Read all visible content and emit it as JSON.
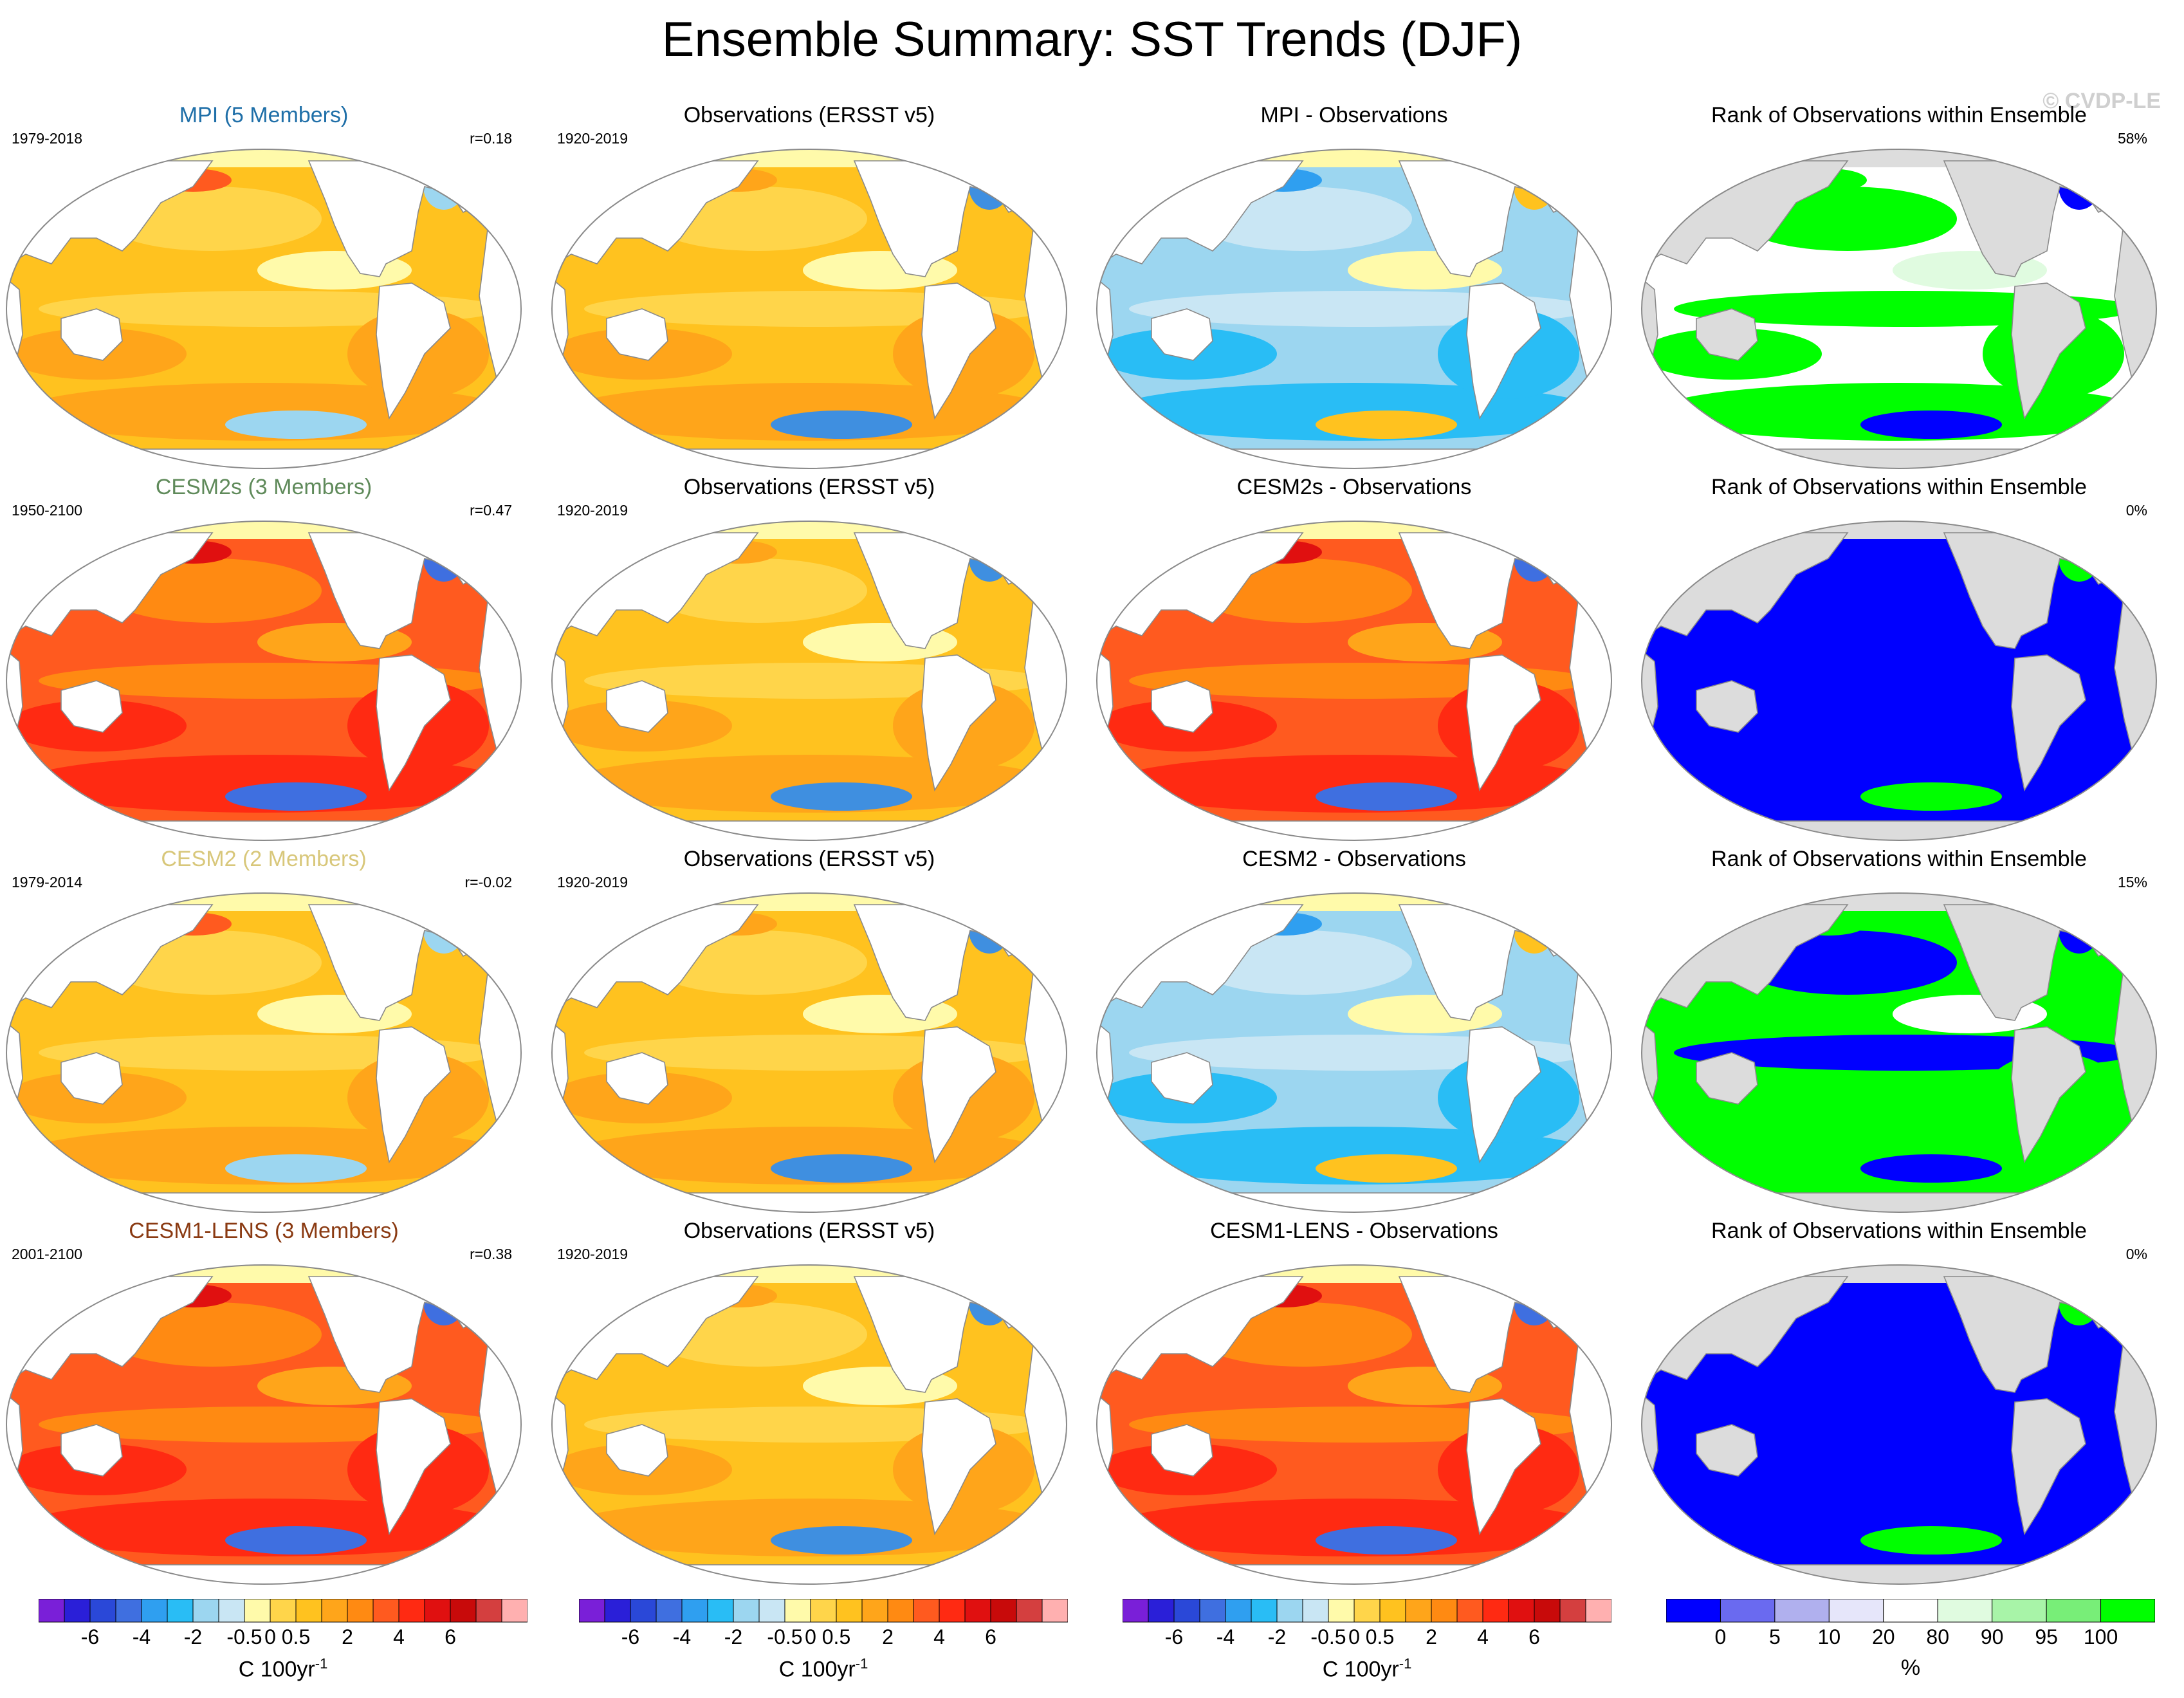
{
  "title": "Ensemble Summary: SST Trends (DJF)",
  "watermark": "© CVDP-LE",
  "rows": [
    {
      "model": {
        "title": "MPI (5 Members)",
        "title_color": "#1f6fa8",
        "years": "1979-2018",
        "corr": "r=0.18",
        "scheme": "warm"
      },
      "obs": {
        "title": "Observations (ERSST v5)",
        "years": "1920-2019",
        "scheme": "obs"
      },
      "diff": {
        "title": "MPI - Observations",
        "scheme": "cool"
      },
      "rank": {
        "title": "Rank of Observations within Ensemble",
        "pct": "58%",
        "scheme": "rank_mixed"
      }
    },
    {
      "model": {
        "title": "CESM2s (3 Members)",
        "title_color": "#5f8a5a",
        "years": "1950-2100",
        "corr": "r=0.47",
        "scheme": "hot"
      },
      "obs": {
        "title": "Observations (ERSST v5)",
        "years": "1920-2019",
        "scheme": "obs"
      },
      "diff": {
        "title": "CESM2s - Observations",
        "scheme": "hot"
      },
      "rank": {
        "title": "Rank of Observations within Ensemble",
        "pct": "0%",
        "scheme": "rank_blue"
      }
    },
    {
      "model": {
        "title": "CESM2 (2 Members)",
        "title_color": "#d8c77a",
        "years": "1979-2014",
        "corr": "r=-0.02",
        "scheme": "warm"
      },
      "obs": {
        "title": "Observations (ERSST v5)",
        "years": "1920-2019",
        "scheme": "obs"
      },
      "diff": {
        "title": "CESM2 - Observations",
        "scheme": "cool"
      },
      "rank": {
        "title": "Rank of Observations within Ensemble",
        "pct": "15%",
        "scheme": "rank_green"
      }
    },
    {
      "model": {
        "title": "CESM1-LENS (3 Members)",
        "title_color": "#8a3a12",
        "years": "2001-2100",
        "corr": "r=0.38",
        "scheme": "hot"
      },
      "obs": {
        "title": "Observations (ERSST v5)",
        "years": "1920-2019",
        "scheme": "obs"
      },
      "diff": {
        "title": "CESM1-LENS - Observations",
        "scheme": "hot"
      },
      "rank": {
        "title": "Rank of Observations within Ensemble",
        "pct": "0%",
        "scheme": "rank_blue"
      }
    }
  ],
  "colorbars": {
    "trend": {
      "colors": [
        "#7a1fd8",
        "#2a1fd8",
        "#2a48d8",
        "#3f6fe0",
        "#2f9ff0",
        "#29bdf5",
        "#9cd6f0",
        "#c9e6f4",
        "#fffaaa",
        "#ffd54a",
        "#ffc21f",
        "#ffa51a",
        "#ff8a12",
        "#ff5a1f",
        "#ff2a12",
        "#e01010",
        "#c80a0a",
        "#d43f3f",
        "#ffb0b0"
      ],
      "labels": [
        "-6",
        "-4",
        "-2",
        "-0.5",
        "0",
        "0.5",
        "2",
        "4",
        "6"
      ],
      "units_base": "C 100yr",
      "units_exp": "-1"
    },
    "rank": {
      "colors": [
        "#0000ff",
        "#6a6af0",
        "#b0b0ee",
        "#e6e6fa",
        "#ffffff",
        "#e0fbe0",
        "#a8f4a8",
        "#78ee78",
        "#00ff00"
      ],
      "labels": [
        "0",
        "5",
        "10",
        "20",
        "80",
        "90",
        "95",
        "100"
      ],
      "units": "%"
    }
  },
  "schemes": {
    "warm": {
      "base": "#ffc21f",
      "b1": "#ffd54a",
      "b2": "#ffa51a",
      "b3": "#fffaaa",
      "b4": "#9cd6f0",
      "b5": "#ff5a1f"
    },
    "obs": {
      "base": "#ffc21f",
      "b1": "#ffd54a",
      "b2": "#ffa51a",
      "b3": "#fffaaa",
      "b4": "#3f8fe0",
      "b5": "#ffa51a"
    },
    "hot": {
      "base": "#ff5a1f",
      "b1": "#ff8a12",
      "b2": "#ff2a12",
      "b3": "#ffa51a",
      "b4": "#3f6fe0",
      "b5": "#e01010"
    },
    "cool": {
      "base": "#9cd6f0",
      "b1": "#c9e6f4",
      "b2": "#29bdf5",
      "b3": "#fffaaa",
      "b4": "#ffc21f",
      "b5": "#2f9ff0"
    },
    "rank_mixed": {
      "base": "#ffffff",
      "b1": "#00ff00",
      "b2": "#00ff00",
      "b3": "#e0fbe0",
      "b4": "#0000ff",
      "b5": "#00ff00"
    },
    "rank_blue": {
      "base": "#0000ff",
      "b1": "#0000ff",
      "b2": "#0000ff",
      "b3": "#0000ff",
      "b4": "#00ff00",
      "b5": "#0000ff"
    },
    "rank_green": {
      "base": "#00ff00",
      "b1": "#0000ff",
      "b2": "#00ff00",
      "b3": "#ffffff",
      "b4": "#0000ff",
      "b5": "#00ff00"
    }
  }
}
